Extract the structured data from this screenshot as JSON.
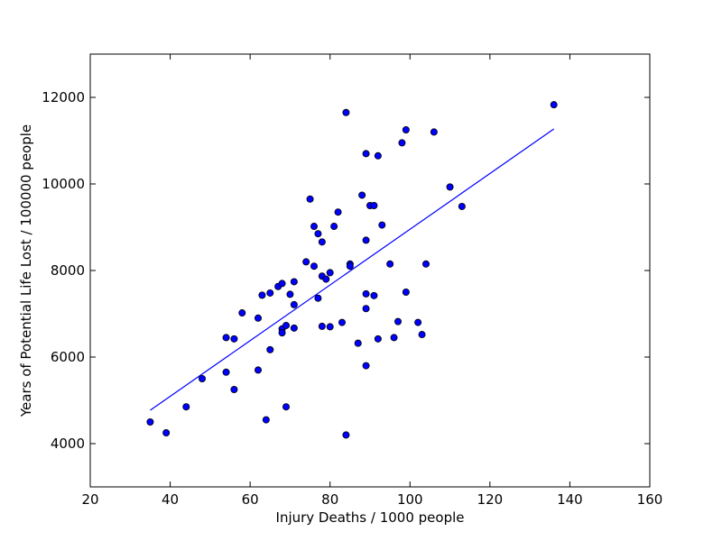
{
  "chart_data": {
    "type": "scatter",
    "xlabel": "Injury Deaths / 1000 people",
    "ylabel": "Years of Potential Life Lost / 100000 people",
    "xlim": [
      20,
      160
    ],
    "ylim": [
      3000,
      13000
    ],
    "x_ticks": [
      20,
      40,
      60,
      80,
      100,
      120,
      140,
      160
    ],
    "y_ticks": [
      4000,
      6000,
      8000,
      10000,
      12000
    ],
    "grid": false,
    "legend": "none",
    "point_color": "#0000ff",
    "line_color": "#0000ff",
    "points": [
      [
        35,
        4500
      ],
      [
        39,
        4250
      ],
      [
        44,
        4850
      ],
      [
        48,
        5500
      ],
      [
        54,
        5650
      ],
      [
        54,
        6450
      ],
      [
        56,
        6420
      ],
      [
        56,
        5250
      ],
      [
        58,
        7020
      ],
      [
        62,
        6900
      ],
      [
        62,
        5700
      ],
      [
        63,
        7430
      ],
      [
        64,
        4550
      ],
      [
        65,
        7480
      ],
      [
        65,
        6170
      ],
      [
        67,
        7630
      ],
      [
        68,
        7700
      ],
      [
        68,
        6650
      ],
      [
        68,
        6560
      ],
      [
        69,
        6730
      ],
      [
        69,
        4850
      ],
      [
        70,
        7450
      ],
      [
        71,
        7740
      ],
      [
        71,
        7210
      ],
      [
        71,
        6670
      ],
      [
        74,
        8200
      ],
      [
        75,
        9650
      ],
      [
        76,
        9020
      ],
      [
        76,
        8100
      ],
      [
        77,
        8850
      ],
      [
        77,
        7360
      ],
      [
        78,
        8660
      ],
      [
        78,
        7870
      ],
      [
        78,
        6710
      ],
      [
        79,
        7800
      ],
      [
        80,
        7950
      ],
      [
        80,
        6700
      ],
      [
        81,
        9020
      ],
      [
        82,
        9350
      ],
      [
        83,
        6800
      ],
      [
        84,
        11650
      ],
      [
        84,
        4200
      ],
      [
        85,
        8150
      ],
      [
        85,
        8100
      ],
      [
        87,
        6320
      ],
      [
        88,
        9740
      ],
      [
        89,
        10700
      ],
      [
        89,
        8700
      ],
      [
        89,
        7460
      ],
      [
        89,
        7120
      ],
      [
        89,
        5800
      ],
      [
        90,
        9500
      ],
      [
        91,
        9500
      ],
      [
        91,
        7420
      ],
      [
        92,
        10650
      ],
      [
        92,
        6420
      ],
      [
        93,
        9050
      ],
      [
        95,
        8150
      ],
      [
        96,
        6450
      ],
      [
        97,
        6820
      ],
      [
        98,
        10950
      ],
      [
        99,
        11250
      ],
      [
        99,
        7500
      ],
      [
        102,
        6800
      ],
      [
        103,
        6520
      ],
      [
        104,
        8150
      ],
      [
        106,
        11200
      ],
      [
        110,
        9930
      ],
      [
        113,
        9480
      ],
      [
        136,
        11830
      ]
    ],
    "fit_line": {
      "x": [
        35,
        136
      ],
      "y": [
        4770,
        11270
      ]
    }
  }
}
